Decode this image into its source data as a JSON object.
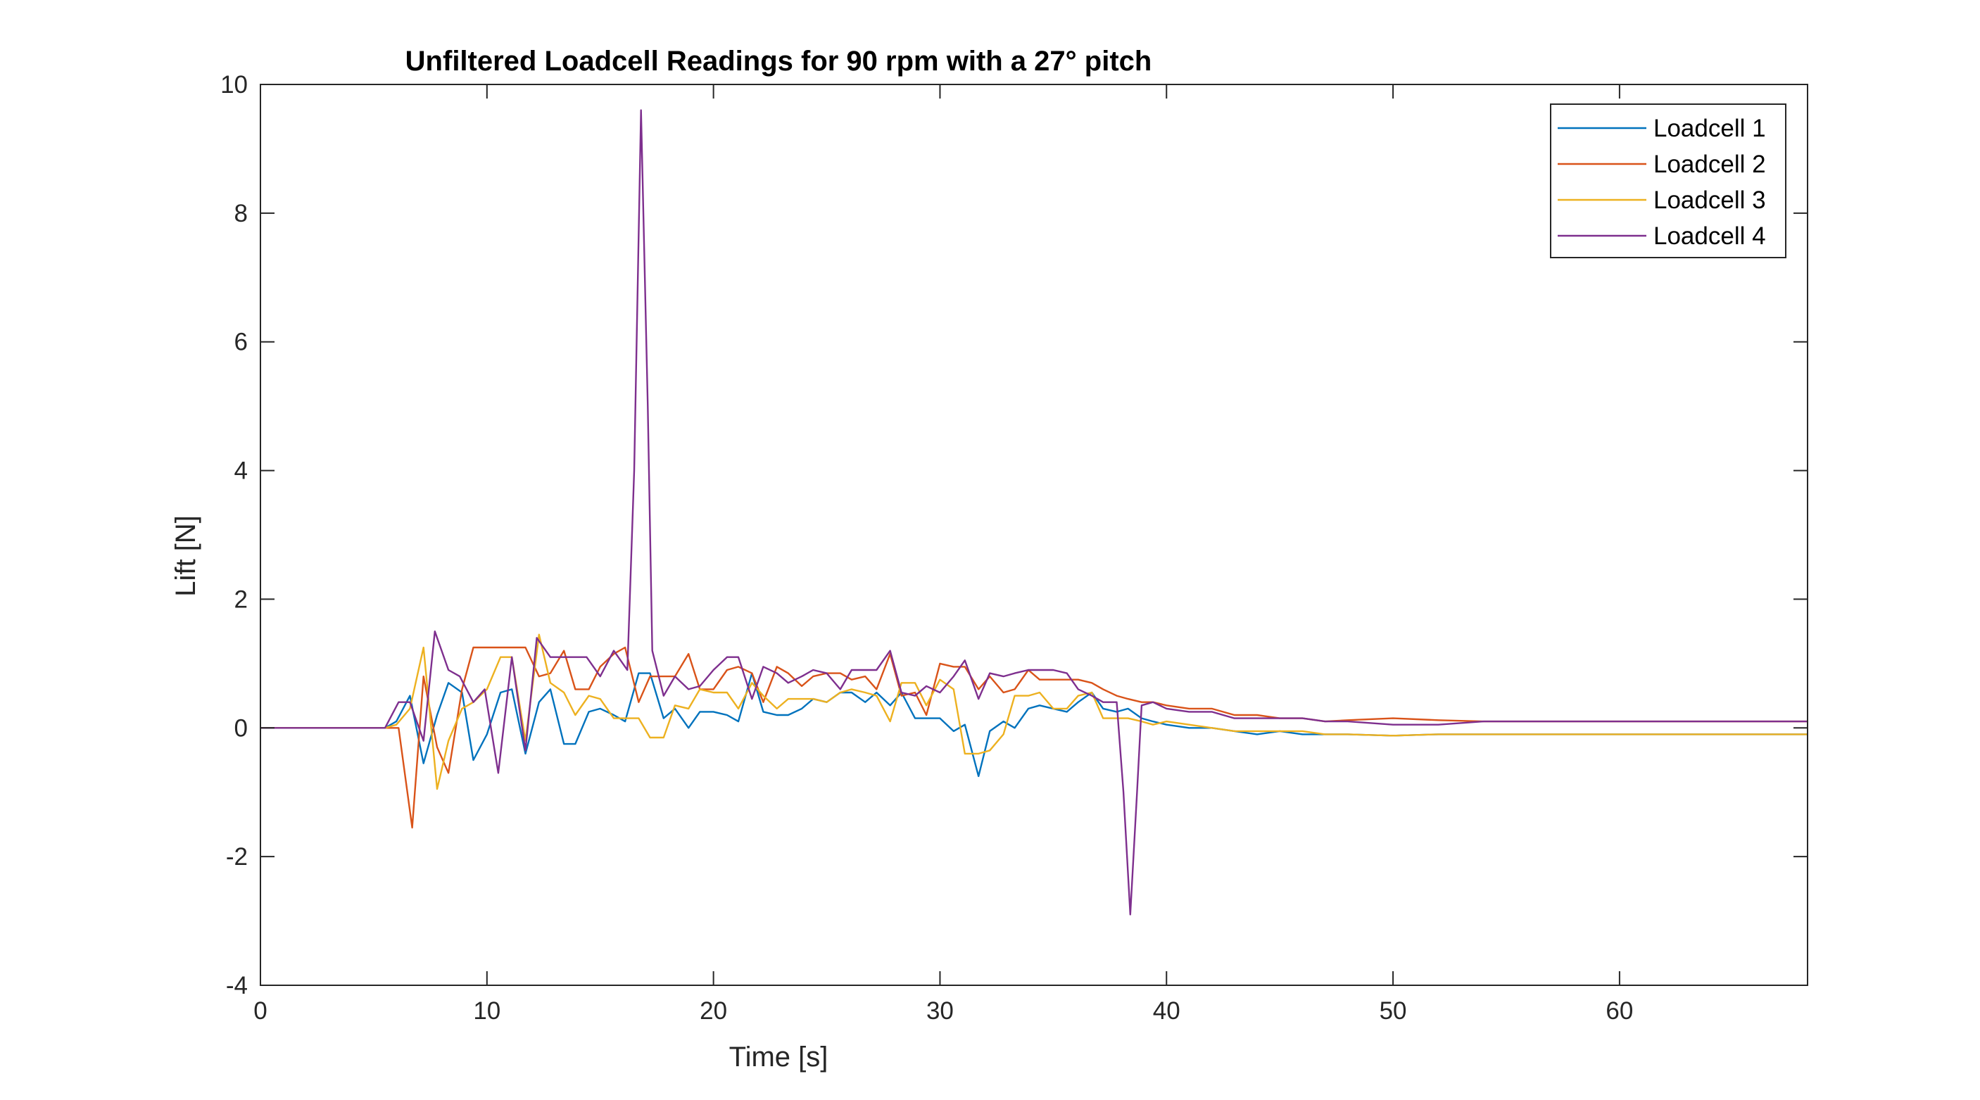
{
  "chart_data": {
    "type": "line",
    "title": "Unfiltered Loadcell Readings for 90 rpm with a 27° pitch",
    "xlabel": "Time [s]",
    "ylabel": "Lift [N]",
    "xlim": [
      0,
      68.3
    ],
    "ylim": [
      -4,
      10
    ],
    "xticks": [
      0,
      10,
      20,
      30,
      40,
      50,
      60
    ],
    "yticks": [
      -4,
      -2,
      0,
      2,
      4,
      6,
      8,
      10
    ],
    "grid": false,
    "legend_position": "top-right",
    "series": [
      {
        "name": "Loadcell 1",
        "color": "#0072BD",
        "points": [
          [
            0,
            0
          ],
          [
            5.5,
            0
          ],
          [
            6.0,
            0.1
          ],
          [
            6.6,
            0.5
          ],
          [
            7.2,
            -0.55
          ],
          [
            7.8,
            0.2
          ],
          [
            8.3,
            0.7
          ],
          [
            8.9,
            0.55
          ],
          [
            9.4,
            -0.5
          ],
          [
            10.0,
            -0.1
          ],
          [
            10.6,
            0.55
          ],
          [
            11.1,
            0.6
          ],
          [
            11.7,
            -0.4
          ],
          [
            12.3,
            0.4
          ],
          [
            12.8,
            0.6
          ],
          [
            13.4,
            -0.25
          ],
          [
            13.9,
            -0.25
          ],
          [
            14.5,
            0.25
          ],
          [
            15.0,
            0.3
          ],
          [
            15.6,
            0.2
          ],
          [
            16.1,
            0.1
          ],
          [
            16.7,
            0.85
          ],
          [
            17.2,
            0.85
          ],
          [
            17.8,
            0.15
          ],
          [
            18.3,
            0.3
          ],
          [
            18.9,
            0.0
          ],
          [
            19.4,
            0.25
          ],
          [
            20.0,
            0.25
          ],
          [
            20.6,
            0.2
          ],
          [
            21.1,
            0.1
          ],
          [
            21.7,
            0.85
          ],
          [
            22.2,
            0.25
          ],
          [
            22.8,
            0.2
          ],
          [
            23.3,
            0.2
          ],
          [
            23.9,
            0.3
          ],
          [
            24.4,
            0.45
          ],
          [
            25.0,
            0.4
          ],
          [
            25.6,
            0.55
          ],
          [
            26.1,
            0.55
          ],
          [
            26.7,
            0.4
          ],
          [
            27.2,
            0.55
          ],
          [
            27.8,
            0.35
          ],
          [
            28.3,
            0.55
          ],
          [
            28.9,
            0.15
          ],
          [
            29.4,
            0.15
          ],
          [
            30.0,
            0.15
          ],
          [
            30.6,
            -0.05
          ],
          [
            31.1,
            0.05
          ],
          [
            31.7,
            -0.75
          ],
          [
            32.2,
            -0.05
          ],
          [
            32.8,
            0.1
          ],
          [
            33.3,
            0.0
          ],
          [
            33.9,
            0.3
          ],
          [
            34.4,
            0.35
          ],
          [
            35.0,
            0.3
          ],
          [
            35.6,
            0.25
          ],
          [
            36.1,
            0.4
          ],
          [
            36.7,
            0.55
          ],
          [
            37.2,
            0.3
          ],
          [
            37.8,
            0.25
          ],
          [
            38.3,
            0.3
          ],
          [
            38.9,
            0.15
          ],
          [
            39.4,
            0.1
          ],
          [
            40.0,
            0.05
          ],
          [
            41.0,
            0.0
          ],
          [
            42.0,
            0.0
          ],
          [
            43.0,
            -0.05
          ],
          [
            44.0,
            -0.1
          ],
          [
            45.0,
            -0.05
          ],
          [
            46.0,
            -0.1
          ],
          [
            47.0,
            -0.1
          ],
          [
            48.0,
            -0.1
          ],
          [
            50.0,
            -0.12
          ],
          [
            52.0,
            -0.1
          ],
          [
            54.0,
            -0.1
          ],
          [
            58.0,
            -0.1
          ],
          [
            62.0,
            -0.1
          ],
          [
            68.3,
            -0.1
          ]
        ]
      },
      {
        "name": "Loadcell 2",
        "color": "#D95319",
        "points": [
          [
            0,
            0
          ],
          [
            5.5,
            0
          ],
          [
            6.1,
            0.0
          ],
          [
            6.7,
            -1.55
          ],
          [
            7.2,
            0.8
          ],
          [
            7.8,
            -0.3
          ],
          [
            8.3,
            -0.7
          ],
          [
            8.9,
            0.6
          ],
          [
            9.4,
            1.25
          ],
          [
            10.6,
            1.25
          ],
          [
            11.7,
            1.25
          ],
          [
            12.3,
            0.8
          ],
          [
            12.8,
            0.85
          ],
          [
            13.4,
            1.2
          ],
          [
            13.9,
            0.6
          ],
          [
            14.5,
            0.6
          ],
          [
            15.0,
            0.95
          ],
          [
            15.6,
            1.15
          ],
          [
            16.1,
            1.25
          ],
          [
            16.7,
            0.4
          ],
          [
            17.2,
            0.8
          ],
          [
            18.3,
            0.8
          ],
          [
            18.9,
            1.15
          ],
          [
            19.4,
            0.6
          ],
          [
            20.0,
            0.6
          ],
          [
            20.6,
            0.9
          ],
          [
            21.1,
            0.95
          ],
          [
            21.7,
            0.85
          ],
          [
            22.2,
            0.4
          ],
          [
            22.8,
            0.95
          ],
          [
            23.3,
            0.85
          ],
          [
            23.9,
            0.65
          ],
          [
            24.4,
            0.8
          ],
          [
            25.0,
            0.85
          ],
          [
            25.6,
            0.85
          ],
          [
            26.1,
            0.75
          ],
          [
            26.7,
            0.8
          ],
          [
            27.2,
            0.6
          ],
          [
            27.8,
            1.15
          ],
          [
            28.3,
            0.5
          ],
          [
            28.9,
            0.55
          ],
          [
            29.4,
            0.2
          ],
          [
            30.0,
            1.0
          ],
          [
            30.6,
            0.95
          ],
          [
            31.1,
            0.95
          ],
          [
            31.7,
            0.6
          ],
          [
            32.2,
            0.8
          ],
          [
            32.8,
            0.55
          ],
          [
            33.3,
            0.6
          ],
          [
            33.9,
            0.9
          ],
          [
            34.4,
            0.75
          ],
          [
            35.0,
            0.75
          ],
          [
            35.6,
            0.75
          ],
          [
            36.1,
            0.75
          ],
          [
            36.7,
            0.7
          ],
          [
            37.2,
            0.6
          ],
          [
            37.8,
            0.5
          ],
          [
            38.3,
            0.45
          ],
          [
            38.9,
            0.4
          ],
          [
            39.4,
            0.4
          ],
          [
            40.0,
            0.35
          ],
          [
            41.0,
            0.3
          ],
          [
            42.0,
            0.3
          ],
          [
            43.0,
            0.2
          ],
          [
            44.0,
            0.2
          ],
          [
            45.0,
            0.15
          ],
          [
            46.0,
            0.15
          ],
          [
            47.0,
            0.1
          ],
          [
            48.0,
            0.12
          ],
          [
            50.0,
            0.15
          ],
          [
            52.0,
            0.12
          ],
          [
            54.0,
            0.1
          ],
          [
            58.0,
            0.1
          ],
          [
            62.0,
            0.1
          ],
          [
            68.3,
            0.1
          ]
        ]
      },
      {
        "name": "Loadcell 3",
        "color": "#EDB120",
        "points": [
          [
            0,
            0
          ],
          [
            5.5,
            0
          ],
          [
            6.0,
            0.05
          ],
          [
            6.6,
            0.3
          ],
          [
            7.2,
            1.25
          ],
          [
            7.8,
            -0.95
          ],
          [
            8.3,
            -0.2
          ],
          [
            8.9,
            0.3
          ],
          [
            9.4,
            0.4
          ],
          [
            10.0,
            0.6
          ],
          [
            10.6,
            1.1
          ],
          [
            11.1,
            1.1
          ],
          [
            11.7,
            -0.2
          ],
          [
            12.3,
            1.45
          ],
          [
            12.8,
            0.7
          ],
          [
            13.4,
            0.55
          ],
          [
            13.9,
            0.2
          ],
          [
            14.5,
            0.5
          ],
          [
            15.0,
            0.45
          ],
          [
            15.6,
            0.15
          ],
          [
            16.1,
            0.15
          ],
          [
            16.7,
            0.15
          ],
          [
            17.2,
            -0.15
          ],
          [
            17.8,
            -0.15
          ],
          [
            18.3,
            0.35
          ],
          [
            18.9,
            0.3
          ],
          [
            19.4,
            0.6
          ],
          [
            20.0,
            0.55
          ],
          [
            20.6,
            0.55
          ],
          [
            21.1,
            0.3
          ],
          [
            21.7,
            0.7
          ],
          [
            22.2,
            0.5
          ],
          [
            22.8,
            0.3
          ],
          [
            23.3,
            0.45
          ],
          [
            23.9,
            0.45
          ],
          [
            24.4,
            0.45
          ],
          [
            25.0,
            0.4
          ],
          [
            25.6,
            0.55
          ],
          [
            26.1,
            0.6
          ],
          [
            26.7,
            0.55
          ],
          [
            27.2,
            0.5
          ],
          [
            27.8,
            0.1
          ],
          [
            28.3,
            0.7
          ],
          [
            28.9,
            0.7
          ],
          [
            29.4,
            0.35
          ],
          [
            30.0,
            0.75
          ],
          [
            30.6,
            0.6
          ],
          [
            31.1,
            -0.4
          ],
          [
            31.7,
            -0.4
          ],
          [
            32.2,
            -0.35
          ],
          [
            32.8,
            -0.1
          ],
          [
            33.3,
            0.5
          ],
          [
            33.9,
            0.5
          ],
          [
            34.4,
            0.55
          ],
          [
            35.0,
            0.3
          ],
          [
            35.6,
            0.3
          ],
          [
            36.1,
            0.5
          ],
          [
            36.7,
            0.55
          ],
          [
            37.2,
            0.15
          ],
          [
            37.8,
            0.15
          ],
          [
            38.3,
            0.15
          ],
          [
            38.9,
            0.1
          ],
          [
            39.4,
            0.05
          ],
          [
            40.0,
            0.1
          ],
          [
            41.0,
            0.05
          ],
          [
            42.0,
            0.0
          ],
          [
            43.0,
            -0.05
          ],
          [
            44.0,
            -0.05
          ],
          [
            45.0,
            -0.05
          ],
          [
            46.0,
            -0.05
          ],
          [
            47.0,
            -0.1
          ],
          [
            48.0,
            -0.1
          ],
          [
            50.0,
            -0.12
          ],
          [
            52.0,
            -0.1
          ],
          [
            54.0,
            -0.1
          ],
          [
            58.0,
            -0.1
          ],
          [
            62.0,
            -0.1
          ],
          [
            68.3,
            -0.1
          ]
        ]
      },
      {
        "name": "Loadcell 4",
        "color": "#7E2F8E",
        "points": [
          [
            0,
            0
          ],
          [
            5.5,
            0
          ],
          [
            6.1,
            0.4
          ],
          [
            6.6,
            0.4
          ],
          [
            7.2,
            -0.2
          ],
          [
            7.7,
            1.5
          ],
          [
            8.3,
            0.9
          ],
          [
            8.8,
            0.8
          ],
          [
            9.4,
            0.4
          ],
          [
            9.9,
            0.6
          ],
          [
            10.5,
            -0.7
          ],
          [
            11.1,
            1.1
          ],
          [
            11.7,
            -0.35
          ],
          [
            12.2,
            1.4
          ],
          [
            12.8,
            1.1
          ],
          [
            13.4,
            1.1
          ],
          [
            14.4,
            1.1
          ],
          [
            15.0,
            0.8
          ],
          [
            15.6,
            1.2
          ],
          [
            16.2,
            0.9
          ],
          [
            16.5,
            4.0
          ],
          [
            16.8,
            9.6
          ],
          [
            17.1,
            5.0
          ],
          [
            17.3,
            1.2
          ],
          [
            17.8,
            0.5
          ],
          [
            18.3,
            0.8
          ],
          [
            18.9,
            0.6
          ],
          [
            19.4,
            0.65
          ],
          [
            20.0,
            0.9
          ],
          [
            20.6,
            1.1
          ],
          [
            21.1,
            1.1
          ],
          [
            21.7,
            0.45
          ],
          [
            22.2,
            0.95
          ],
          [
            22.8,
            0.85
          ],
          [
            23.3,
            0.7
          ],
          [
            23.9,
            0.8
          ],
          [
            24.4,
            0.9
          ],
          [
            25.0,
            0.85
          ],
          [
            25.6,
            0.6
          ],
          [
            26.1,
            0.9
          ],
          [
            27.2,
            0.9
          ],
          [
            27.8,
            1.2
          ],
          [
            28.3,
            0.55
          ],
          [
            28.9,
            0.5
          ],
          [
            29.4,
            0.65
          ],
          [
            30.0,
            0.55
          ],
          [
            30.6,
            0.8
          ],
          [
            31.1,
            1.05
          ],
          [
            31.7,
            0.45
          ],
          [
            32.2,
            0.85
          ],
          [
            32.8,
            0.8
          ],
          [
            33.3,
            0.85
          ],
          [
            33.9,
            0.9
          ],
          [
            35.0,
            0.9
          ],
          [
            35.6,
            0.85
          ],
          [
            36.1,
            0.6
          ],
          [
            36.7,
            0.5
          ],
          [
            37.2,
            0.4
          ],
          [
            37.8,
            0.4
          ],
          [
            38.1,
            -1.0
          ],
          [
            38.4,
            -2.9
          ],
          [
            38.7,
            -1.0
          ],
          [
            38.9,
            0.35
          ],
          [
            39.4,
            0.4
          ],
          [
            40.0,
            0.3
          ],
          [
            41.0,
            0.25
          ],
          [
            42.0,
            0.25
          ],
          [
            43.0,
            0.15
          ],
          [
            44.0,
            0.15
          ],
          [
            45.0,
            0.15
          ],
          [
            46.0,
            0.15
          ],
          [
            47.0,
            0.1
          ],
          [
            48.0,
            0.1
          ],
          [
            50.0,
            0.05
          ],
          [
            52.0,
            0.05
          ],
          [
            54.0,
            0.1
          ],
          [
            58.0,
            0.1
          ],
          [
            62.0,
            0.1
          ],
          [
            68.3,
            0.1
          ]
        ]
      }
    ]
  }
}
